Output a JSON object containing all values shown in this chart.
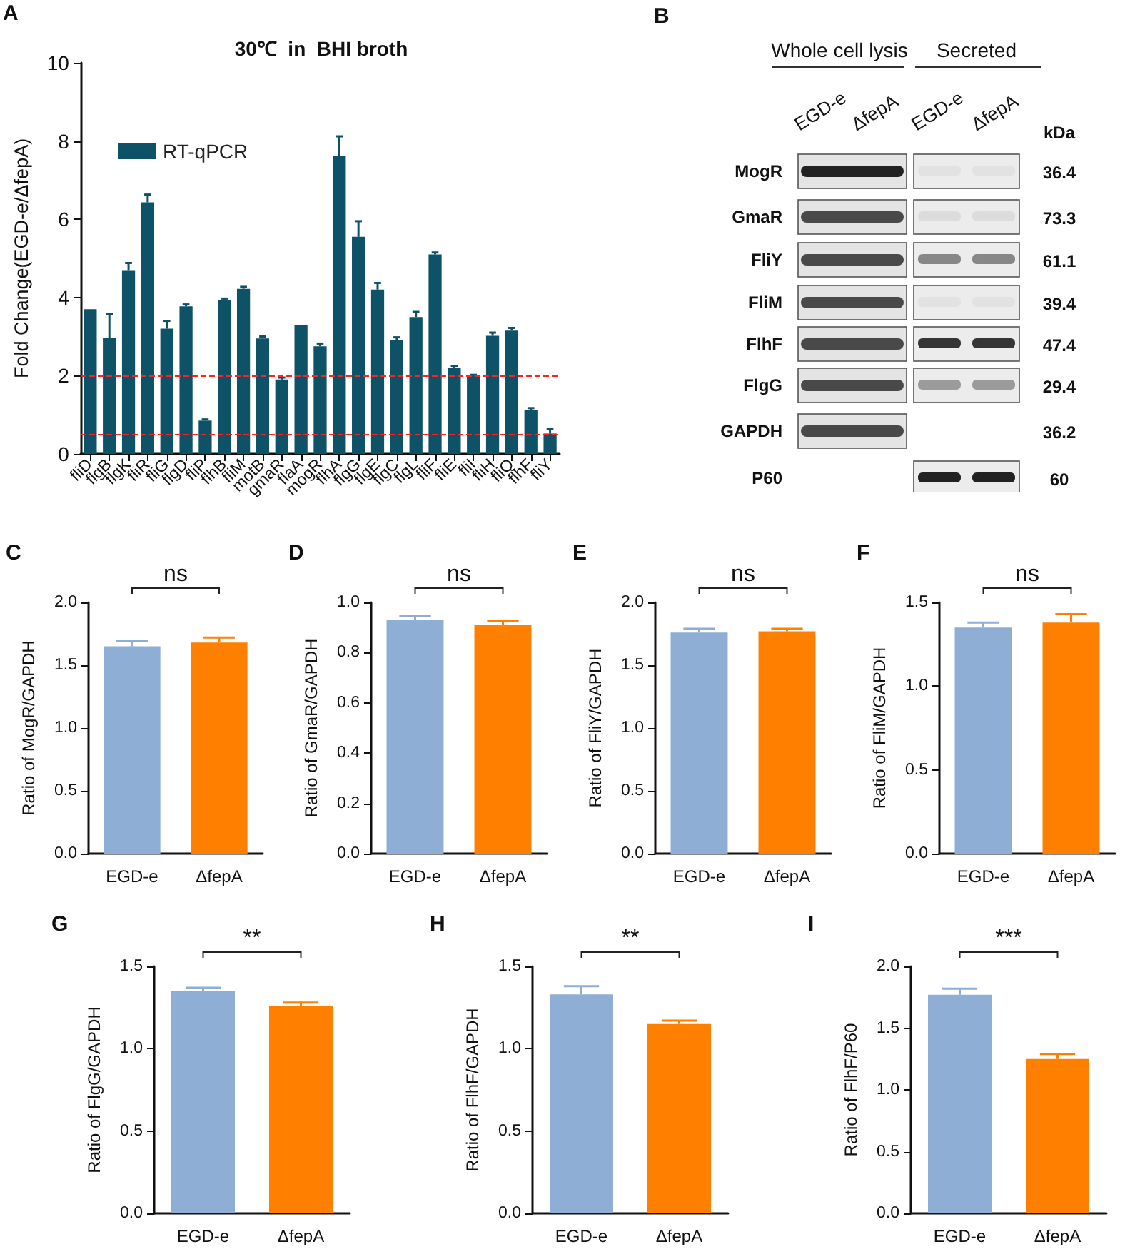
{
  "chart_data": [
    {
      "type": "bar",
      "title": "30℃  in  BHI broth",
      "ylabel": "Fold Change(EGD-e/ΔfepA)",
      "annotations": [
        "A"
      ],
      "categories": [
        "fliD",
        "flgB",
        "flgK",
        "fliR",
        "fliG",
        "flgD",
        "fliP",
        "flhB",
        "fliM",
        "motB",
        "gmaR",
        "flaA",
        "mogR",
        "flhA",
        "flgG",
        "flgE",
        "flgC",
        "flgL",
        "fliF",
        "fliE",
        "fliI",
        "fliH",
        "fliQ",
        "flhF",
        "fliY"
      ],
      "series": [
        {
          "name": "RT-qPCR",
          "color": "#0d5266",
          "values": [
            3.7,
            2.97,
            4.68,
            6.43,
            3.2,
            3.77,
            0.85,
            3.92,
            4.22,
            2.95,
            1.9,
            3.3,
            2.75,
            7.62,
            5.55,
            4.2,
            2.9,
            3.5,
            5.1,
            2.2,
            2.0,
            3.02,
            3.15,
            1.12,
            0.52
          ],
          "errors": [
            null,
            [
              2.97,
              3.57
            ],
            [
              4.68,
              4.88
            ],
            [
              6.43,
              6.63
            ],
            [
              3.2,
              3.4
            ],
            [
              3.77,
              3.82
            ],
            [
              0.85,
              0.88
            ],
            [
              3.92,
              3.97
            ],
            [
              4.22,
              4.27
            ],
            [
              2.95,
              3.0
            ],
            [
              1.9,
              1.95
            ],
            null,
            [
              2.75,
              2.82
            ],
            [
              7.62,
              8.12
            ],
            [
              5.55,
              5.95
            ],
            [
              4.2,
              4.37
            ],
            [
              2.9,
              2.98
            ],
            [
              3.5,
              3.63
            ],
            [
              5.1,
              5.15
            ],
            [
              2.2,
              2.25
            ],
            [
              2.0,
              2.02
            ],
            [
              3.02,
              3.1
            ],
            [
              3.15,
              3.22
            ],
            [
              1.12,
              1.17
            ],
            [
              0.52,
              0.64
            ]
          ]
        }
      ],
      "ylim": [
        0,
        10
      ],
      "yticks": [
        0,
        2,
        4,
        6,
        8,
        10
      ],
      "legend": "top left",
      "ref_lines": [
        {
          "axis": "y",
          "value": 2,
          "color": "#ff2020",
          "line_style": "dashed"
        },
        {
          "axis": "y",
          "value": 0.5,
          "color": "#ff2020",
          "line_style": "dashed"
        }
      ]
    },
    {
      "type": "other",
      "annotations": [
        "B",
        "Whole cell lysis",
        "Secreted",
        "EGD-e",
        "ΔfepA",
        "EGD-e",
        "ΔfepA",
        "kDa",
        "MogR",
        "36.4",
        "GmaR",
        "73.3",
        "FliY",
        "61.1",
        "FliM",
        "39.4",
        "FlhF",
        "47.4",
        "FlgG",
        "29.4",
        "GAPDH",
        "36.2",
        "P60",
        "60"
      ]
    },
    {
      "type": "bar",
      "ylabel": "Ratio of MogR/GAPDH",
      "annotations": [
        "C",
        "ns"
      ],
      "categories": [
        "EGD-e",
        "ΔfepA"
      ],
      "values": [
        1.65,
        1.68
      ],
      "colors": [
        "#8eaed6",
        "#ff8000"
      ],
      "errors": [
        [
          1.65,
          1.69
        ],
        [
          1.68,
          1.72
        ]
      ],
      "ylim": [
        0,
        2
      ],
      "yticks": [
        {
          "value": 0,
          "label": "0.0"
        },
        0.5,
        {
          "value": 1,
          "label": "1.0"
        },
        1.5,
        {
          "value": 2,
          "label": "2.0"
        }
      ]
    },
    {
      "type": "bar",
      "ylabel": "Ratio of GmaR/GAPDH",
      "annotations": [
        "D",
        "ns"
      ],
      "categories": [
        "EGD-e",
        "ΔfepA"
      ],
      "values": [
        0.93,
        0.91
      ],
      "colors": [
        "#8eaed6",
        "#ff8000"
      ],
      "errors": [
        [
          0.93,
          0.945
        ],
        [
          0.91,
          0.925
        ]
      ],
      "ylim": [
        0,
        1
      ],
      "yticks": [
        {
          "value": 0,
          "label": "0.0"
        },
        0.2,
        0.4,
        0.6,
        0.8,
        {
          "value": 1,
          "label": "1.0"
        }
      ]
    },
    {
      "type": "bar",
      "ylabel": "Ratio of FliY/GAPDH",
      "annotations": [
        "E",
        "ns"
      ],
      "categories": [
        "EGD-e",
        "ΔfepA"
      ],
      "values": [
        1.76,
        1.77
      ],
      "colors": [
        "#8eaed6",
        "#ff8000"
      ],
      "errors": [
        [
          1.76,
          1.79
        ],
        [
          1.77,
          1.79
        ]
      ],
      "ylim": [
        0,
        2
      ],
      "yticks": [
        {
          "value": 0,
          "label": "0.0"
        },
        0.5,
        {
          "value": 1,
          "label": "1.0"
        },
        1.5,
        {
          "value": 2,
          "label": "2.0"
        }
      ]
    },
    {
      "type": "bar",
      "ylabel": "Ratio of FliM/GAPDH",
      "annotations": [
        "F",
        "ns"
      ],
      "categories": [
        "EGD-e",
        "ΔfepA"
      ],
      "values": [
        1.35,
        1.38
      ],
      "colors": [
        "#8eaed6",
        "#ff8000"
      ],
      "errors": [
        [
          1.35,
          1.38
        ],
        [
          1.38,
          1.43
        ]
      ],
      "ylim": [
        0,
        1.5
      ],
      "yticks": [
        {
          "value": 0,
          "label": "0.0"
        },
        0.5,
        {
          "value": 1,
          "label": "1.0"
        },
        1.5
      ]
    },
    {
      "type": "bar",
      "ylabel": "Ratio of FlgG/GAPDH",
      "annotations": [
        "G",
        "**"
      ],
      "categories": [
        "EGD-e",
        "ΔfepA"
      ],
      "values": [
        1.35,
        1.26
      ],
      "colors": [
        "#8eaed6",
        "#ff8000"
      ],
      "errors": [
        [
          1.35,
          1.37
        ],
        [
          1.26,
          1.28
        ]
      ],
      "ylim": [
        0,
        1.5
      ],
      "yticks": [
        {
          "value": 0,
          "label": "0.0"
        },
        0.5,
        {
          "value": 1,
          "label": "1.0"
        },
        1.5
      ]
    },
    {
      "type": "bar",
      "ylabel": "Ratio of FlhF/GAPDH",
      "annotations": [
        "H",
        "**"
      ],
      "categories": [
        "EGD-e",
        "ΔfepA"
      ],
      "values": [
        1.33,
        1.15
      ],
      "colors": [
        "#8eaed6",
        "#ff8000"
      ],
      "errors": [
        [
          1.33,
          1.38
        ],
        [
          1.15,
          1.17
        ]
      ],
      "ylim": [
        0,
        1.5
      ],
      "yticks": [
        {
          "value": 0,
          "label": "0.0"
        },
        0.5,
        {
          "value": 1,
          "label": "1.0"
        },
        1.5
      ]
    },
    {
      "type": "bar",
      "ylabel": "Ratio of FlhF/P60",
      "annotations": [
        "I",
        "***"
      ],
      "categories": [
        "EGD-e",
        "ΔfepA"
      ],
      "values": [
        1.77,
        1.25
      ],
      "colors": [
        "#8eaed6",
        "#ff8000"
      ],
      "errors": [
        [
          1.77,
          1.82
        ],
        [
          1.25,
          1.29
        ]
      ],
      "ylim": [
        0,
        2
      ],
      "yticks": [
        {
          "value": 0,
          "label": "0.0"
        },
        0.5,
        {
          "value": 1,
          "label": "1.0"
        },
        1.5,
        {
          "value": 2,
          "label": "2.0"
        }
      ]
    }
  ]
}
